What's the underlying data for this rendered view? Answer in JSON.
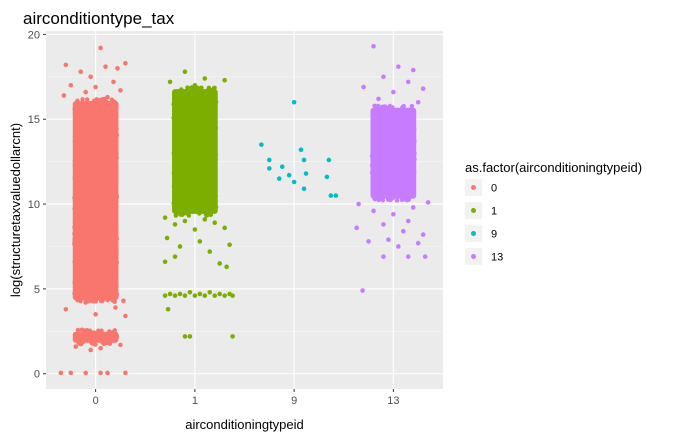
{
  "chart_data": {
    "type": "scatter",
    "title": "airconditiontype_tax",
    "xlabel": "airconditioningtypeid",
    "ylabel": "log(structuretaxvaluedollarcnt)",
    "categories": [
      "0",
      "1",
      "9",
      "13"
    ],
    "ylim": [
      -0.9,
      20.2
    ],
    "y_ticks": [
      "0",
      "5",
      "10",
      "15",
      "20"
    ],
    "grid": true,
    "jitter_width": 0.4,
    "legend": {
      "title": "as.factor(airconditioningtypeid)",
      "placement": "right",
      "entries": [
        "0",
        "1",
        "9",
        "13"
      ]
    },
    "series": [
      {
        "name": "0",
        "category": "0",
        "color": "#F8766D",
        "bands": [
          {
            "ymin": 5.3,
            "ymax": 15.9,
            "density": "dense"
          },
          {
            "ymin": 4.5,
            "ymax": 5.3,
            "density": "dense"
          },
          {
            "ymin": 2.0,
            "ymax": 2.3,
            "density": "dense"
          }
        ],
        "points": [
          [
            0.05,
            19.2
          ],
          [
            -0.3,
            18.2
          ],
          [
            0.1,
            18.1
          ],
          [
            0.22,
            18.0
          ],
          [
            -0.15,
            17.8
          ],
          [
            0.3,
            18.3
          ],
          [
            -0.05,
            17.5
          ],
          [
            0.18,
            17.2
          ],
          [
            -0.25,
            17.0
          ],
          [
            0.0,
            16.9
          ],
          [
            -0.1,
            16.6
          ],
          [
            0.25,
            16.7
          ],
          [
            -0.32,
            16.4
          ],
          [
            0.12,
            16.3
          ],
          [
            -0.3,
            3.8
          ],
          [
            0.0,
            3.5
          ],
          [
            0.2,
            3.9
          ],
          [
            -0.1,
            4.2
          ],
          [
            0.3,
            3.4
          ],
          [
            0.28,
            4.3
          ],
          [
            -0.2,
            1.6
          ],
          [
            0.05,
            1.5
          ],
          [
            0.25,
            1.7
          ],
          [
            -0.05,
            1.4
          ],
          [
            -0.35,
            0.05
          ],
          [
            -0.25,
            0.05
          ],
          [
            -0.1,
            0.05
          ],
          [
            0.05,
            0.05
          ],
          [
            0.12,
            0.05
          ],
          [
            0.3,
            0.05
          ]
        ]
      },
      {
        "name": "1",
        "category": "1",
        "color": "#7CAE00",
        "bands": [
          {
            "ymin": 9.6,
            "ymax": 16.6,
            "density": "dense"
          }
        ],
        "points": [
          [
            -0.25,
            17.2
          ],
          [
            -0.1,
            17.8
          ],
          [
            0.1,
            17.4
          ],
          [
            0.3,
            17.3
          ],
          [
            0.0,
            17.0
          ],
          [
            -0.3,
            9.2
          ],
          [
            -0.2,
            8.8
          ],
          [
            -0.1,
            9.0
          ],
          [
            0.0,
            8.5
          ],
          [
            0.1,
            9.1
          ],
          [
            0.2,
            8.9
          ],
          [
            0.3,
            8.6
          ],
          [
            -0.28,
            8.0
          ],
          [
            -0.15,
            7.5
          ],
          [
            0.05,
            7.8
          ],
          [
            0.15,
            7.2
          ],
          [
            0.35,
            7.6
          ],
          [
            -0.3,
            6.6
          ],
          [
            -0.2,
            6.9
          ],
          [
            0.25,
            6.5
          ],
          [
            0.32,
            6.3
          ],
          [
            -0.3,
            4.6
          ],
          [
            -0.25,
            4.7
          ],
          [
            -0.2,
            4.6
          ],
          [
            -0.15,
            4.7
          ],
          [
            -0.1,
            4.6
          ],
          [
            -0.05,
            4.8
          ],
          [
            0.0,
            4.6
          ],
          [
            0.05,
            4.7
          ],
          [
            0.1,
            4.6
          ],
          [
            0.15,
            4.8
          ],
          [
            0.2,
            4.6
          ],
          [
            0.25,
            4.7
          ],
          [
            0.3,
            4.6
          ],
          [
            0.35,
            4.7
          ],
          [
            0.38,
            4.6
          ],
          [
            -0.27,
            3.8
          ],
          [
            -0.05,
            2.2
          ],
          [
            -0.1,
            2.2
          ],
          [
            0.38,
            2.2
          ]
        ]
      },
      {
        "name": "9",
        "category": "9",
        "color": "#00BFC4",
        "bands": [],
        "points": [
          [
            -0.33,
            13.5
          ],
          [
            0.0,
            16.0
          ],
          [
            -0.25,
            12.6
          ],
          [
            -0.12,
            12.2
          ],
          [
            -0.05,
            11.7
          ],
          [
            0.1,
            12.6
          ],
          [
            0.12,
            11.8
          ],
          [
            0.0,
            11.3
          ],
          [
            -0.25,
            12.1
          ],
          [
            0.07,
            13.2
          ],
          [
            -0.15,
            11.5
          ],
          [
            0.35,
            12.6
          ],
          [
            0.33,
            11.6
          ],
          [
            0.37,
            10.5
          ],
          [
            0.42,
            10.5
          ],
          [
            0.1,
            10.9
          ]
        ]
      },
      {
        "name": "13",
        "category": "13",
        "color": "#C77CFF",
        "bands": [
          {
            "ymin": 10.5,
            "ymax": 15.5,
            "density": "dense"
          }
        ],
        "points": [
          [
            -0.2,
            19.3
          ],
          [
            0.05,
            18.1
          ],
          [
            0.2,
            17.9
          ],
          [
            -0.1,
            17.5
          ],
          [
            0.15,
            17.2
          ],
          [
            -0.3,
            16.9
          ],
          [
            0.3,
            16.8
          ],
          [
            0.0,
            16.6
          ],
          [
            -0.15,
            16.2
          ],
          [
            0.25,
            16.0
          ],
          [
            -0.35,
            10.0
          ],
          [
            -0.2,
            9.6
          ],
          [
            0.0,
            9.4
          ],
          [
            0.2,
            9.8
          ],
          [
            0.35,
            10.1
          ],
          [
            -0.37,
            8.6
          ],
          [
            -0.1,
            8.8
          ],
          [
            0.1,
            8.4
          ],
          [
            0.3,
            8.2
          ],
          [
            0.15,
            9.0
          ],
          [
            -0.05,
            7.9
          ],
          [
            0.25,
            7.7
          ],
          [
            -0.25,
            7.8
          ],
          [
            0.05,
            7.5
          ],
          [
            -0.1,
            6.9
          ],
          [
            0.15,
            6.9
          ],
          [
            0.32,
            6.9
          ],
          [
            -0.31,
            4.9
          ]
        ]
      }
    ]
  }
}
